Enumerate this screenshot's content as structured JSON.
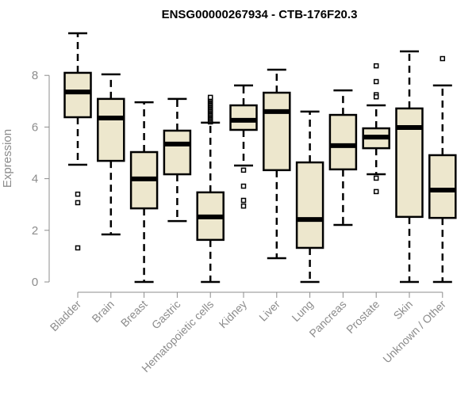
{
  "chart_data": {
    "type": "box",
    "title": "ENSG00000267934 - CTB-176F20.3",
    "xlabel": "",
    "ylabel": "Expression",
    "ylim": [
      0,
      9.7
    ],
    "yticks": [
      0,
      2,
      4,
      6,
      8
    ],
    "grid": false,
    "box_color": "#ede7cd",
    "categories": [
      "Bladder",
      "Brain",
      "Breast",
      "Gastric",
      "Hematopoietic cells",
      "Kidney",
      "Liver",
      "Lung",
      "Pancreas",
      "Prostate",
      "Skin",
      "Unknown / Other"
    ],
    "boxes": [
      {
        "whisker_low": 4.54,
        "q1": 6.38,
        "median": 7.36,
        "q3": 8.1,
        "whisker_high": 9.63,
        "outliers": [
          3.4,
          3.07,
          1.32
        ]
      },
      {
        "whisker_low": 1.84,
        "q1": 4.69,
        "median": 6.35,
        "q3": 7.09,
        "whisker_high": 8.04,
        "outliers": []
      },
      {
        "whisker_low": 0,
        "q1": 2.85,
        "median": 3.99,
        "q3": 5.03,
        "whisker_high": 6.96,
        "outliers": []
      },
      {
        "whisker_low": 2.36,
        "q1": 4.17,
        "median": 5.34,
        "q3": 5.86,
        "whisker_high": 7.09,
        "outliers": []
      },
      {
        "whisker_low": 0,
        "q1": 1.63,
        "median": 2.52,
        "q3": 3.47,
        "whisker_high": 6.17,
        "outliers": [
          6.2,
          6.25,
          6.3,
          6.35,
          6.4,
          6.45,
          6.5,
          6.55,
          6.6,
          6.65,
          6.7,
          6.75,
          6.8,
          6.85,
          6.9,
          6.95,
          7.0,
          7.05,
          7.1,
          7.15
        ]
      },
      {
        "whisker_low": 4.51,
        "q1": 5.89,
        "median": 6.26,
        "q3": 6.84,
        "whisker_high": 7.61,
        "outliers": [
          4.33,
          3.71,
          3.16,
          2.94
        ]
      },
      {
        "whisker_low": 0.92,
        "q1": 4.33,
        "median": 6.6,
        "q3": 7.33,
        "whisker_high": 8.22,
        "outliers": []
      },
      {
        "whisker_low": 0,
        "q1": 1.32,
        "median": 2.42,
        "q3": 4.63,
        "whisker_high": 6.6,
        "outliers": []
      },
      {
        "whisker_low": 2.21,
        "q1": 4.36,
        "median": 5.28,
        "q3": 6.47,
        "whisker_high": 7.42,
        "outliers": []
      },
      {
        "whisker_low": 4.17,
        "q1": 5.18,
        "median": 5.61,
        "q3": 5.95,
        "whisker_high": 6.84,
        "outliers": [
          8.37,
          7.76,
          7.25,
          7.17,
          4.02,
          3.5
        ]
      },
      {
        "whisker_low": 0,
        "q1": 2.52,
        "median": 5.98,
        "q3": 6.72,
        "whisker_high": 8.93,
        "outliers": []
      },
      {
        "whisker_low": 0,
        "q1": 2.48,
        "median": 3.56,
        "q3": 4.91,
        "whisker_high": 7.61,
        "outliers": [
          8.65
        ]
      }
    ]
  }
}
